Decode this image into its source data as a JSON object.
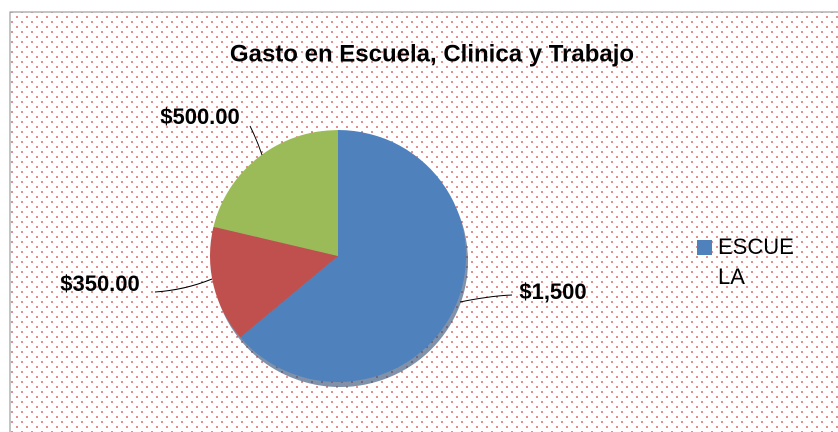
{
  "chart_data": {
    "type": "pie",
    "title": "Gasto en Escuela, Clinica y Trabajo",
    "categories": [
      "ESCUELA",
      null,
      null
    ],
    "values": [
      1500,
      350,
      500
    ],
    "value_labels": [
      "$1,500",
      "$350.00",
      "$500.00"
    ],
    "colors": [
      "#4f81bd",
      "#c0504d",
      "#9bbb59"
    ],
    "legend": "right"
  }
}
